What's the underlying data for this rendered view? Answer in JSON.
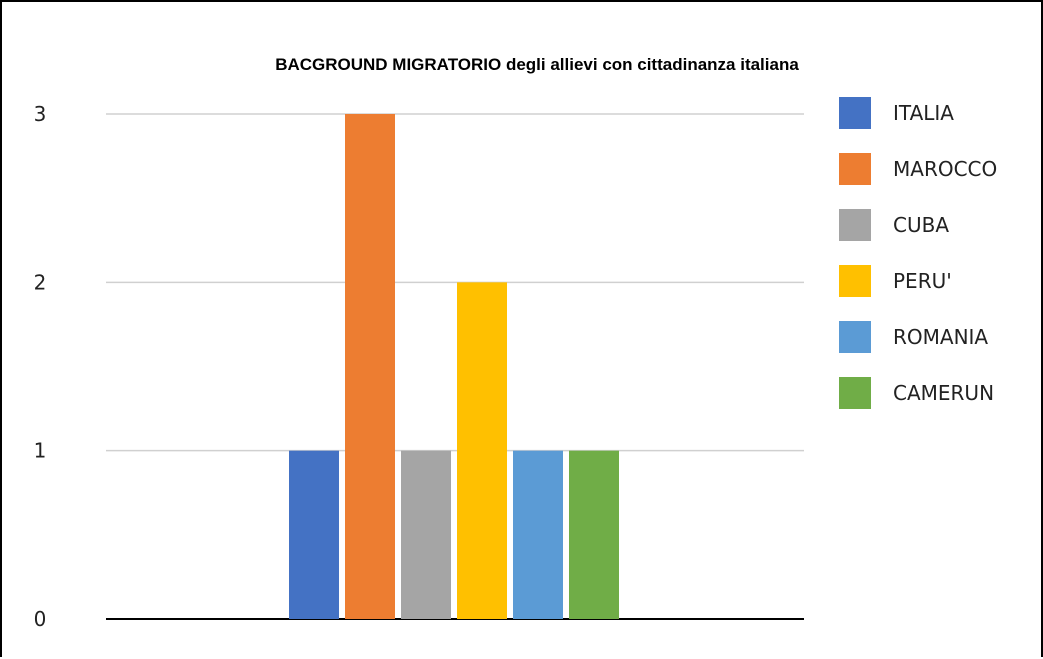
{
  "chart_data": {
    "type": "bar",
    "title": "BACGROUND MIGRATORIO degli allievi con cittadinanza italiana",
    "xlabel": "",
    "ylabel": "",
    "ylim": [
      0,
      3
    ],
    "yticks": [
      "0",
      "1",
      "2",
      "3"
    ],
    "grid": true,
    "legend_position": "right",
    "series": [
      {
        "name": "ITALIA",
        "values": [
          1
        ],
        "color": "#4472C4"
      },
      {
        "name": "MAROCCO",
        "values": [
          3
        ],
        "color": "#ED7D31"
      },
      {
        "name": "CUBA",
        "values": [
          1
        ],
        "color": "#A5A5A5"
      },
      {
        "name": "PERU'",
        "values": [
          2
        ],
        "color": "#FFC000"
      },
      {
        "name": "ROMANIA",
        "values": [
          1
        ],
        "color": "#5B9BD5"
      },
      {
        "name": "CAMERUN",
        "values": [
          1
        ],
        "color": "#70AD47"
      }
    ]
  }
}
